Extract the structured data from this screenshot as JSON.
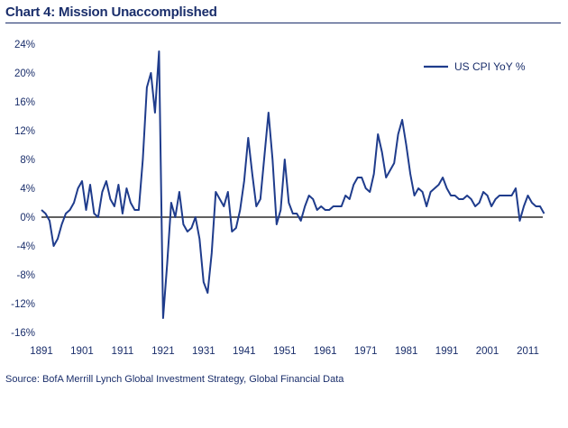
{
  "header": {
    "title": "Chart 4: Mission Unaccomplished",
    "source": "Source: BofA Merrill Lynch Global Investment Strategy, Global Financial Data"
  },
  "colors": {
    "line": "#1f3c8c",
    "text": "#1a2e6b",
    "zero_axis": "#000000"
  },
  "chart_data": {
    "type": "line",
    "title": "Chart 4: Mission Unaccomplished",
    "xlabel": "",
    "ylabel": "",
    "xlim": [
      1891,
      2016
    ],
    "ylim": [
      -16,
      24
    ],
    "grid": false,
    "legend_position": "top-right",
    "x_ticks": [
      1891,
      1901,
      1911,
      1921,
      1931,
      1941,
      1951,
      1961,
      1971,
      1981,
      1991,
      2001,
      2011
    ],
    "y_ticks": [
      24,
      20,
      16,
      12,
      8,
      4,
      0,
      -4,
      -8,
      -12,
      -16
    ],
    "y_tick_labels": [
      "24%",
      "20%",
      "16%",
      "12%",
      "8%",
      "4%",
      "0%",
      "-4%",
      "-8%",
      "-12%",
      "-16%"
    ],
    "series": [
      {
        "name": "US CPI YoY %",
        "x": [
          1891,
          1892,
          1893,
          1894,
          1895,
          1896,
          1897,
          1898,
          1899,
          1900,
          1901,
          1902,
          1903,
          1904,
          1905,
          1906,
          1907,
          1908,
          1909,
          1910,
          1911,
          1912,
          1913,
          1914,
          1915,
          1916,
          1917,
          1918,
          1919,
          1920,
          1921,
          1922,
          1923,
          1924,
          1925,
          1926,
          1927,
          1928,
          1929,
          1930,
          1931,
          1932,
          1933,
          1934,
          1935,
          1936,
          1937,
          1938,
          1939,
          1940,
          1941,
          1942,
          1943,
          1944,
          1945,
          1946,
          1947,
          1948,
          1949,
          1950,
          1951,
          1952,
          1953,
          1954,
          1955,
          1956,
          1957,
          1958,
          1959,
          1960,
          1961,
          1962,
          1963,
          1964,
          1965,
          1966,
          1967,
          1968,
          1969,
          1970,
          1971,
          1972,
          1973,
          1974,
          1975,
          1976,
          1977,
          1978,
          1979,
          1980,
          1981,
          1982,
          1983,
          1984,
          1985,
          1986,
          1987,
          1988,
          1989,
          1990,
          1991,
          1992,
          1993,
          1994,
          1995,
          1996,
          1997,
          1998,
          1999,
          2000,
          2001,
          2002,
          2003,
          2004,
          2005,
          2006,
          2007,
          2008,
          2009,
          2010,
          2011,
          2012,
          2013,
          2014,
          2015
        ],
        "values": [
          1.0,
          0.5,
          -0.5,
          -4.0,
          -3.0,
          -1.0,
          0.5,
          1.0,
          2.0,
          4.0,
          5.0,
          1.0,
          4.5,
          0.5,
          0.0,
          3.5,
          5.0,
          2.5,
          1.5,
          4.5,
          0.5,
          4.0,
          2.0,
          1.0,
          1.0,
          8.0,
          18.0,
          20.0,
          14.5,
          23.0,
          -14.0,
          -6.5,
          2.0,
          0.0,
          3.5,
          -1.0,
          -2.0,
          -1.5,
          0.0,
          -3.0,
          -9.0,
          -10.5,
          -5.0,
          3.5,
          2.5,
          1.5,
          3.5,
          -2.0,
          -1.5,
          1.0,
          5.0,
          11.0,
          6.0,
          1.5,
          2.5,
          8.5,
          14.5,
          8.0,
          -1.0,
          1.0,
          8.0,
          2.0,
          0.5,
          0.5,
          -0.5,
          1.5,
          3.0,
          2.5,
          1.0,
          1.5,
          1.0,
          1.0,
          1.5,
          1.5,
          1.5,
          3.0,
          2.5,
          4.5,
          5.5,
          5.5,
          4.0,
          3.5,
          6.0,
          11.5,
          9.0,
          5.5,
          6.5,
          7.5,
          11.5,
          13.5,
          10.0,
          6.0,
          3.0,
          4.0,
          3.5,
          1.5,
          3.5,
          4.0,
          4.5,
          5.5,
          4.0,
          3.0,
          3.0,
          2.5,
          2.5,
          3.0,
          2.5,
          1.5,
          2.0,
          3.5,
          3.0,
          1.5,
          2.5,
          3.0,
          3.0,
          3.0,
          3.0,
          4.0,
          -0.5,
          1.5,
          3.0,
          2.0,
          1.5,
          1.5,
          0.5
        ]
      }
    ]
  }
}
